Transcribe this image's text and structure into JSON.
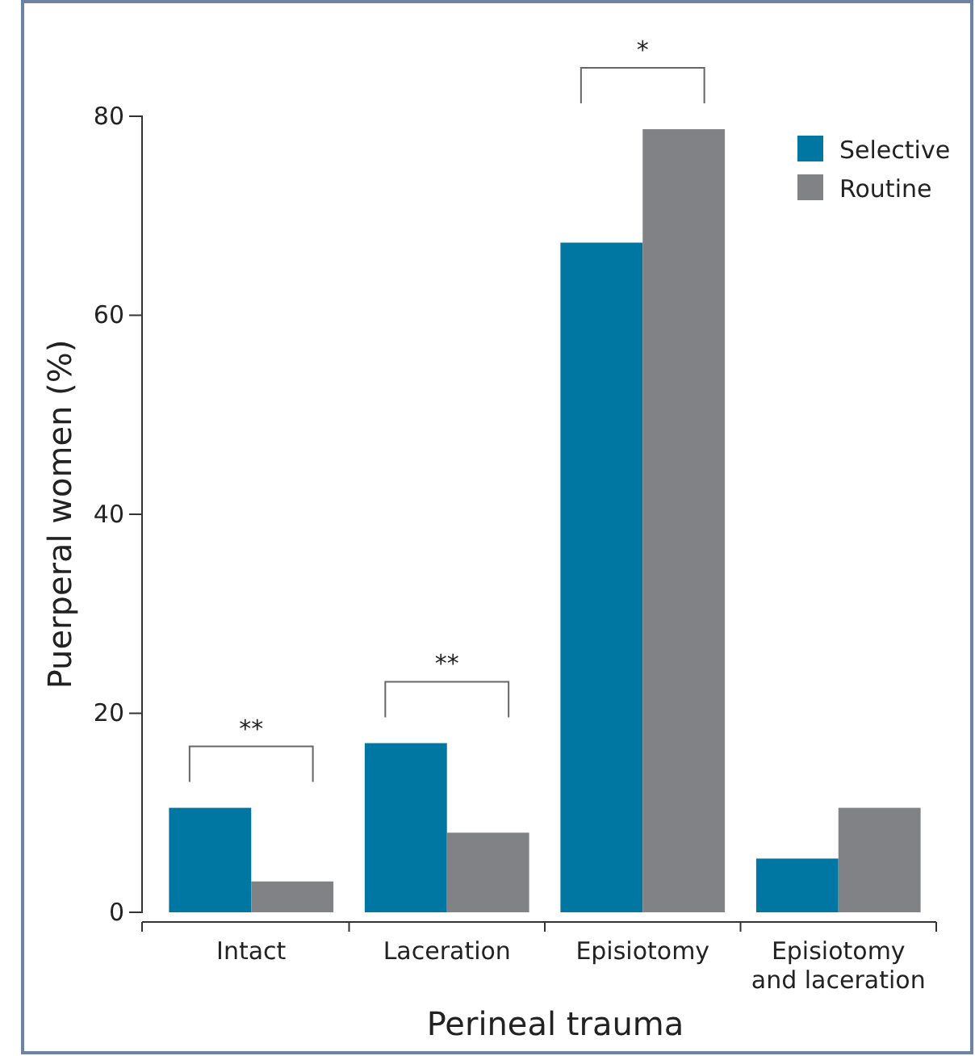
{
  "chart_data": {
    "type": "bar",
    "xlabel": "Perineal trauma",
    "ylabel": "Puerperal women (%)",
    "categories": [
      "Intact",
      "Laceration",
      "Episiotomy",
      "Episiotomy and laceration"
    ],
    "series": [
      {
        "name": "Selective",
        "color": "#0076a3",
        "values": [
          10.5,
          17.0,
          67.3,
          5.4
        ]
      },
      {
        "name": "Routine",
        "color": "#808285",
        "values": [
          3.1,
          8.0,
          78.7,
          10.5
        ]
      }
    ],
    "ylim": [
      0,
      80
    ],
    "yticks": [
      0,
      20,
      40,
      60,
      80
    ],
    "grid": false,
    "legend": "top right",
    "annotations": [
      "**",
      "**",
      "*"
    ]
  }
}
